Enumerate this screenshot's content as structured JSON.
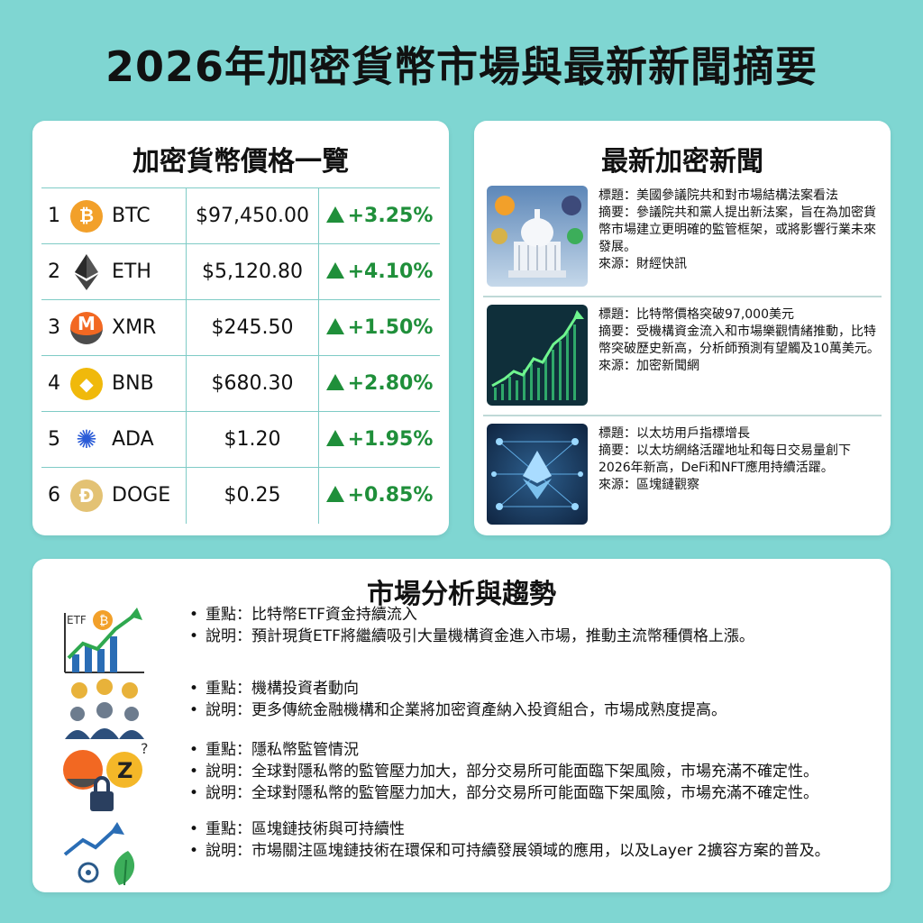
{
  "title": "2026年加密貨幣市場與最新新聞摘要",
  "prices": {
    "title": "加密貨幣價格一覽",
    "rows": [
      {
        "rank": "1",
        "symbol": "BTC",
        "price": "$97,450.00",
        "change": "+3.25%",
        "icon": "bitcoin-icon",
        "glyph": "₿",
        "color": "#f2a02a"
      },
      {
        "rank": "2",
        "symbol": "ETH",
        "price": "$5,120.80",
        "change": "+4.10%",
        "icon": "ethereum-icon",
        "glyph": "",
        "color": "#3a3a3a"
      },
      {
        "rank": "3",
        "symbol": "XMR",
        "price": "$245.50",
        "change": "+1.50%",
        "icon": "monero-icon",
        "glyph": "M",
        "color": "#f26822"
      },
      {
        "rank": "4",
        "symbol": "BNB",
        "price": "$680.30",
        "change": "+2.80%",
        "icon": "bnb-icon",
        "glyph": "◆",
        "color": "#f0b90b"
      },
      {
        "rank": "5",
        "symbol": "ADA",
        "price": "$1.20",
        "change": "+1.95%",
        "icon": "cardano-icon",
        "glyph": "✺",
        "color": "#2a5bd7"
      },
      {
        "rank": "6",
        "symbol": "DOGE",
        "price": "$0.25",
        "change": "+0.85%",
        "icon": "dogecoin-icon",
        "glyph": "Ð",
        "color": "#c9a33a"
      }
    ]
  },
  "news": {
    "title": "最新加密新聞",
    "items": [
      {
        "headline": "標題：美國參議院共和對市場結構法案看法",
        "summary": "摘要：參議院共和黨人提出新法案，旨在為加密貨幣市場建立更明確的監管框架，或將影響行業未來發展。",
        "source": "來源：財經快訊",
        "image": "capitol-building-image"
      },
      {
        "headline": "標題：比特幣價格突破97,000美元",
        "summary": "摘要：受機構資金流入和市場樂觀情緒推動，比特幣突破歷史新高，分析師預測有望觸及10萬美元。",
        "source": "來源：加密新聞網",
        "image": "price-chart-image"
      },
      {
        "headline": "標題：以太坊用戶指標增長",
        "summary": "摘要：以太坊網絡活躍地址和每日交易量創下2026年新高，DeFi和NFT應用持續活躍。",
        "source": "來源：區塊鏈觀察",
        "image": "ethereum-network-image"
      }
    ]
  },
  "analysis": {
    "title": "市場分析與趨勢",
    "items": [
      {
        "icon": "etf-growth-icon",
        "icon_label": "ETF",
        "lines": [
          "重點：比特幣ETF資金持續流入",
          "說明：預計現貨ETF將繼續吸引大量機構資金進入市場，推動主流幣種價格上漲。"
        ]
      },
      {
        "icon": "institutional-investors-icon",
        "lines": [
          "重點：機構投資者動向",
          "說明：更多傳統金融機構和企業將加密資產納入投資組合，市場成熟度提高。"
        ]
      },
      {
        "icon": "privacy-coin-lock-icon",
        "lines": [
          "重點：隱私幣監管情況",
          "說明：全球對隱私幣的監管壓力加大，部分交易所可能面臨下架風險，市場充滿不確定性。",
          "說明：全球對隱私幣的監管壓力加大，部分交易所可能面臨下架風險，市場充滿不確定性。"
        ]
      },
      {
        "icon": "sustainability-growth-icon",
        "lines": [
          "重點：區塊鏈技術與可持續性",
          "說明：市場關注區塊鏈技術在環保和可持續發展領域的應用，以及Layer 2擴容方案的普及。"
        ]
      }
    ]
  }
}
